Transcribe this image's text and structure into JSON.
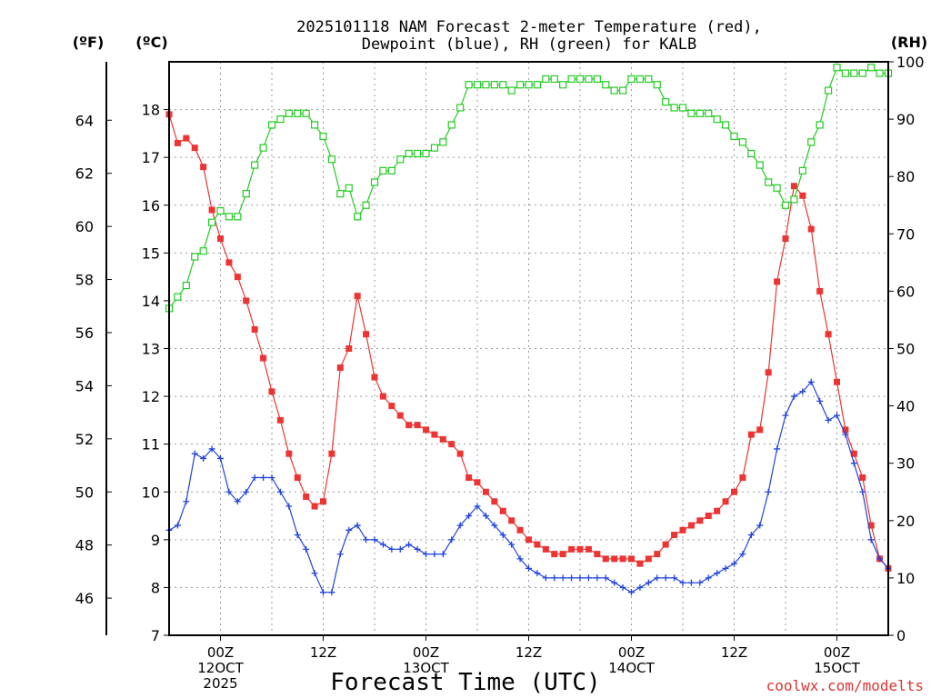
{
  "title_line1": "2025101118 NAM Forecast 2-meter Temperature (red),",
  "title_line2": "Dewpoint (blue), RH (green) for KALB",
  "xlabel": "Forecast Time (UTC)",
  "credit": "coolwx.com/modelts",
  "colors": {
    "temperature": "#ee3333",
    "dewpoint": "#2244dd",
    "rh": "#22cc22",
    "credit": "#dd3333"
  },
  "chart_data": {
    "type": "line",
    "title": "2025101118 NAM Forecast 2-meter Temperature (red), Dewpoint (blue), RH (green) for KALB",
    "xlabel": "Forecast Time (UTC)",
    "x_unit": "forecast hour",
    "xlim": [
      0,
      84
    ],
    "x_ticks": [
      {
        "hour": 6,
        "label": [
          "00Z",
          "12OCT",
          "2025"
        ]
      },
      {
        "hour": 18,
        "label": [
          "12Z"
        ]
      },
      {
        "hour": 30,
        "label": [
          "00Z",
          "13OCT"
        ]
      },
      {
        "hour": 42,
        "label": [
          "12Z"
        ]
      },
      {
        "hour": 54,
        "label": [
          "00Z",
          "14OCT"
        ]
      },
      {
        "hour": 66,
        "label": [
          "12Z"
        ]
      },
      {
        "hour": 78,
        "label": [
          "00Z",
          "15OCT"
        ]
      }
    ],
    "x_grid": [
      6,
      12,
      18,
      24,
      30,
      36,
      42,
      48,
      54,
      60,
      66,
      72,
      78
    ],
    "axes": {
      "celsius": {
        "label": "(ºC)",
        "range": [
          7,
          19
        ],
        "ticks": [
          7,
          8,
          9,
          10,
          11,
          12,
          13,
          14,
          15,
          16,
          17,
          18
        ]
      },
      "fahrenheit": {
        "label": "(ºF)",
        "ticks": [
          46,
          48,
          50,
          52,
          54,
          56,
          58,
          60,
          62,
          64
        ]
      },
      "rh": {
        "label": "(RH)",
        "range": [
          0,
          100
        ],
        "ticks": [
          0,
          10,
          20,
          30,
          40,
          50,
          60,
          70,
          80,
          90,
          100
        ]
      }
    },
    "grid": true,
    "series": [
      {
        "name": "Temperature",
        "units": "C",
        "marker": "filled-square",
        "values": [
          17.9,
          17.3,
          17.4,
          17.2,
          16.8,
          15.9,
          15.3,
          14.8,
          14.5,
          14.0,
          13.4,
          12.8,
          12.1,
          11.5,
          10.8,
          10.3,
          9.9,
          9.7,
          9.8,
          10.8,
          12.6,
          13.0,
          14.1,
          13.3,
          12.4,
          12.0,
          11.8,
          11.6,
          11.4,
          11.4,
          11.3,
          11.2,
          11.1,
          11.0,
          10.8,
          10.3,
          10.2,
          10.0,
          9.8,
          9.6,
          9.4,
          9.2,
          9.0,
          8.9,
          8.8,
          8.7,
          8.7,
          8.8,
          8.8,
          8.8,
          8.7,
          8.6,
          8.6,
          8.6,
          8.6,
          8.5,
          8.6,
          8.7,
          8.9,
          9.1,
          9.2,
          9.3,
          9.4,
          9.5,
          9.6,
          9.8,
          10.0,
          10.3,
          11.2,
          11.3,
          12.5,
          14.4,
          15.3,
          16.4,
          16.2,
          15.5,
          14.2,
          13.3,
          12.3,
          11.3,
          10.8,
          10.3,
          9.3,
          8.6,
          8.4
        ]
      },
      {
        "name": "Dewpoint",
        "units": "C",
        "marker": "plus",
        "values": [
          9.2,
          9.3,
          9.8,
          10.8,
          10.7,
          10.9,
          10.7,
          10.0,
          9.8,
          10.0,
          10.3,
          10.3,
          10.3,
          10.0,
          9.7,
          9.1,
          8.8,
          8.3,
          7.9,
          7.9,
          8.7,
          9.2,
          9.3,
          9.0,
          9.0,
          8.9,
          8.8,
          8.8,
          8.9,
          8.8,
          8.7,
          8.7,
          8.7,
          9.0,
          9.3,
          9.5,
          9.7,
          9.5,
          9.3,
          9.1,
          8.9,
          8.6,
          8.4,
          8.3,
          8.2,
          8.2,
          8.2,
          8.2,
          8.2,
          8.2,
          8.2,
          8.2,
          8.1,
          8.0,
          7.9,
          8.0,
          8.1,
          8.2,
          8.2,
          8.2,
          8.1,
          8.1,
          8.1,
          8.2,
          8.3,
          8.4,
          8.5,
          8.7,
          9.1,
          9.3,
          10.0,
          10.9,
          11.6,
          12.0,
          12.1,
          12.3,
          11.9,
          11.5,
          11.6,
          11.2,
          10.6,
          10.0,
          9.0,
          8.6,
          8.4
        ]
      },
      {
        "name": "RH",
        "units": "%",
        "axis": "rh",
        "marker": "open-square",
        "values": [
          57,
          59,
          61,
          66,
          67,
          72,
          74,
          73,
          73,
          77,
          82,
          85,
          89,
          90,
          91,
          91,
          91,
          89,
          87,
          83,
          77,
          78,
          73,
          75,
          79,
          81,
          81,
          83,
          84,
          84,
          84,
          85,
          86,
          89,
          92,
          96,
          96,
          96,
          96,
          96,
          95,
          96,
          96,
          96,
          97,
          97,
          96,
          97,
          97,
          97,
          97,
          96,
          95,
          95,
          97,
          97,
          97,
          96,
          93,
          92,
          92,
          91,
          91,
          91,
          90,
          89,
          87,
          86,
          84,
          82,
          79,
          78,
          75,
          76,
          81,
          86,
          89,
          95,
          99,
          98,
          98,
          98,
          99,
          98,
          98
        ]
      }
    ]
  }
}
